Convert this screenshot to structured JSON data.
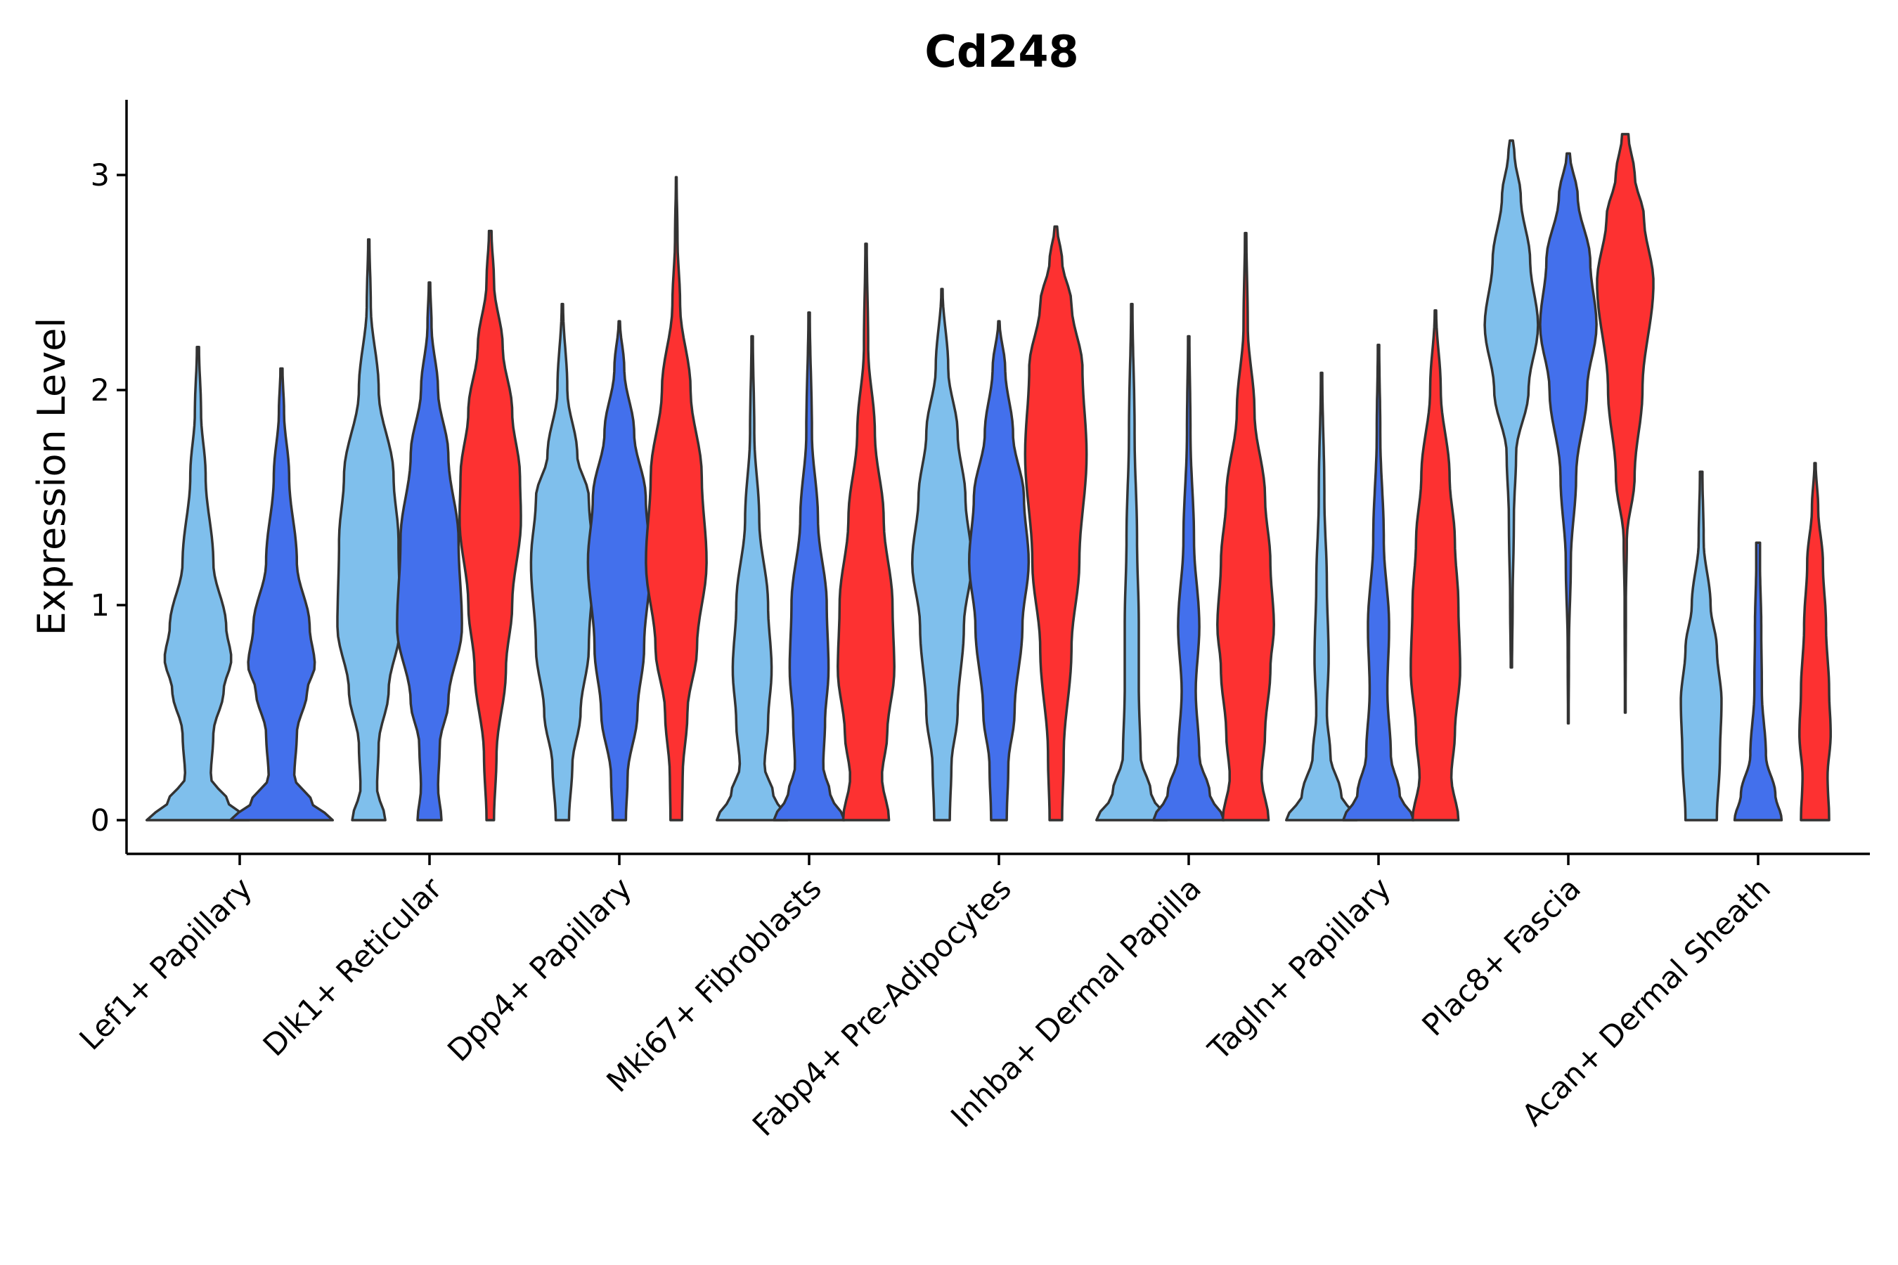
{
  "chart_data": {
    "type": "violin",
    "title": "Cd248",
    "xlabel": "",
    "ylabel": "Expression Level",
    "ylim": [
      -0.16,
      3.35
    ],
    "yticks": [
      0,
      1,
      2,
      3
    ],
    "colors": [
      "#7fbfec",
      "#4370ec",
      "#fd3131"
    ],
    "categories": [
      "Lef1+ Papillary",
      "Dlk1+ Reticular",
      "Dpp4+ Papillary",
      "Mki67+ Fibroblasts",
      "Fabp4+ Pre-Adipocytes",
      "Inhba+ Dermal Papilla",
      "Tagln+ Papillary",
      "Plac8+ Fascia",
      "Acan+ Dermal Sheath"
    ],
    "violins": [
      {
        "category": 0,
        "offset": -0.22,
        "color": 0,
        "min": 0.0,
        "max": 2.2,
        "width": 0.9,
        "profile": [
          [
            0.0,
            1.0
          ],
          [
            0.08,
            0.6
          ],
          [
            0.2,
            0.25
          ],
          [
            0.4,
            0.3
          ],
          [
            0.6,
            0.5
          ],
          [
            0.75,
            0.65
          ],
          [
            0.9,
            0.55
          ],
          [
            1.2,
            0.3
          ],
          [
            1.6,
            0.15
          ],
          [
            1.9,
            0.06
          ],
          [
            2.2,
            0.02
          ]
        ]
      },
      {
        "category": 0,
        "offset": 0.22,
        "color": 1,
        "min": 0.0,
        "max": 2.1,
        "width": 0.9,
        "profile": [
          [
            0.0,
            1.0
          ],
          [
            0.08,
            0.6
          ],
          [
            0.2,
            0.25
          ],
          [
            0.4,
            0.3
          ],
          [
            0.6,
            0.5
          ],
          [
            0.72,
            0.65
          ],
          [
            0.9,
            0.55
          ],
          [
            1.2,
            0.3
          ],
          [
            1.6,
            0.15
          ],
          [
            1.9,
            0.05
          ],
          [
            2.1,
            0.02
          ]
        ]
      },
      {
        "category": 1,
        "offset": -0.32,
        "color": 0,
        "min": 0.0,
        "max": 2.7,
        "width": 0.58,
        "profile": [
          [
            0.0,
            0.5
          ],
          [
            0.15,
            0.25
          ],
          [
            0.35,
            0.3
          ],
          [
            0.6,
            0.6
          ],
          [
            0.9,
            0.95
          ],
          [
            1.3,
            0.9
          ],
          [
            1.6,
            0.75
          ],
          [
            2.0,
            0.3
          ],
          [
            2.4,
            0.06
          ],
          [
            2.7,
            0.02
          ]
        ]
      },
      {
        "category": 1,
        "offset": 0.0,
        "color": 1,
        "min": 0.0,
        "max": 2.5,
        "width": 0.6,
        "profile": [
          [
            0.0,
            0.35
          ],
          [
            0.15,
            0.25
          ],
          [
            0.35,
            0.3
          ],
          [
            0.55,
            0.55
          ],
          [
            0.9,
            0.95
          ],
          [
            1.3,
            0.85
          ],
          [
            1.7,
            0.55
          ],
          [
            2.0,
            0.25
          ],
          [
            2.3,
            0.06
          ],
          [
            2.5,
            0.02
          ]
        ]
      },
      {
        "category": 1,
        "offset": 0.32,
        "color": 2,
        "min": 0.0,
        "max": 2.74,
        "width": 0.55,
        "profile": [
          [
            0.0,
            0.12
          ],
          [
            0.3,
            0.2
          ],
          [
            0.7,
            0.5
          ],
          [
            1.0,
            0.7
          ],
          [
            1.4,
            0.98
          ],
          [
            1.6,
            0.95
          ],
          [
            1.9,
            0.7
          ],
          [
            2.2,
            0.4
          ],
          [
            2.5,
            0.12
          ],
          [
            2.74,
            0.04
          ]
        ]
      },
      {
        "category": 2,
        "offset": -0.3,
        "color": 0,
        "min": 0.0,
        "max": 2.4,
        "width": 0.58,
        "profile": [
          [
            0.0,
            0.2
          ],
          [
            0.25,
            0.3
          ],
          [
            0.5,
            0.55
          ],
          [
            0.8,
            0.8
          ],
          [
            1.2,
            0.95
          ],
          [
            1.5,
            0.8
          ],
          [
            1.7,
            0.45
          ],
          [
            2.0,
            0.15
          ],
          [
            2.4,
            0.02
          ]
        ]
      },
      {
        "category": 2,
        "offset": 0.0,
        "color": 1,
        "min": 0.0,
        "max": 2.32,
        "width": 0.58,
        "profile": [
          [
            0.0,
            0.2
          ],
          [
            0.2,
            0.25
          ],
          [
            0.5,
            0.55
          ],
          [
            0.8,
            0.75
          ],
          [
            1.2,
            0.95
          ],
          [
            1.5,
            0.8
          ],
          [
            1.8,
            0.45
          ],
          [
            2.1,
            0.15
          ],
          [
            2.32,
            0.02
          ]
        ]
      },
      {
        "category": 2,
        "offset": 0.3,
        "color": 2,
        "min": 0.0,
        "max": 2.99,
        "width": 0.56,
        "profile": [
          [
            0.0,
            0.18
          ],
          [
            0.2,
            0.2
          ],
          [
            0.5,
            0.35
          ],
          [
            0.8,
            0.65
          ],
          [
            1.2,
            0.95
          ],
          [
            1.6,
            0.8
          ],
          [
            2.0,
            0.45
          ],
          [
            2.4,
            0.12
          ],
          [
            2.7,
            0.04
          ],
          [
            2.99,
            0.01
          ]
        ]
      },
      {
        "category": 3,
        "offset": -0.3,
        "color": 0,
        "min": 0.0,
        "max": 2.25,
        "width": 0.62,
        "profile": [
          [
            0.0,
            1.0
          ],
          [
            0.12,
            0.6
          ],
          [
            0.25,
            0.35
          ],
          [
            0.45,
            0.45
          ],
          [
            0.7,
            0.55
          ],
          [
            1.0,
            0.45
          ],
          [
            1.4,
            0.2
          ],
          [
            1.8,
            0.06
          ],
          [
            2.25,
            0.02
          ]
        ]
      },
      {
        "category": 3,
        "offset": 0.0,
        "color": 1,
        "min": 0.0,
        "max": 2.36,
        "width": 0.62,
        "profile": [
          [
            0.0,
            1.0
          ],
          [
            0.12,
            0.6
          ],
          [
            0.25,
            0.4
          ],
          [
            0.45,
            0.45
          ],
          [
            0.7,
            0.55
          ],
          [
            1.0,
            0.5
          ],
          [
            1.4,
            0.25
          ],
          [
            1.8,
            0.08
          ],
          [
            2.36,
            0.02
          ]
        ]
      },
      {
        "category": 3,
        "offset": 0.3,
        "color": 2,
        "min": 0.0,
        "max": 2.68,
        "width": 0.62,
        "profile": [
          [
            0.0,
            0.65
          ],
          [
            0.2,
            0.45
          ],
          [
            0.4,
            0.6
          ],
          [
            0.7,
            0.8
          ],
          [
            1.0,
            0.75
          ],
          [
            1.4,
            0.5
          ],
          [
            1.8,
            0.25
          ],
          [
            2.2,
            0.06
          ],
          [
            2.68,
            0.02
          ]
        ]
      },
      {
        "category": 4,
        "offset": -0.3,
        "color": 0,
        "min": 0.0,
        "max": 2.47,
        "width": 0.55,
        "profile": [
          [
            0.0,
            0.25
          ],
          [
            0.25,
            0.3
          ],
          [
            0.5,
            0.5
          ],
          [
            0.9,
            0.7
          ],
          [
            1.2,
            0.95
          ],
          [
            1.5,
            0.75
          ],
          [
            1.8,
            0.5
          ],
          [
            2.1,
            0.2
          ],
          [
            2.47,
            0.02
          ]
        ]
      },
      {
        "category": 4,
        "offset": 0.0,
        "color": 1,
        "min": 0.0,
        "max": 2.32,
        "width": 0.55,
        "profile": [
          [
            0.0,
            0.25
          ],
          [
            0.25,
            0.3
          ],
          [
            0.5,
            0.5
          ],
          [
            0.9,
            0.75
          ],
          [
            1.2,
            0.95
          ],
          [
            1.5,
            0.8
          ],
          [
            1.8,
            0.45
          ],
          [
            2.1,
            0.2
          ],
          [
            2.32,
            0.02
          ]
        ]
      },
      {
        "category": 4,
        "offset": 0.3,
        "color": 2,
        "min": 0.0,
        "max": 2.76,
        "width": 0.55,
        "profile": [
          [
            0.0,
            0.2
          ],
          [
            0.3,
            0.25
          ],
          [
            0.8,
            0.5
          ],
          [
            1.2,
            0.75
          ],
          [
            1.7,
            0.98
          ],
          [
            2.1,
            0.85
          ],
          [
            2.4,
            0.5
          ],
          [
            2.6,
            0.2
          ],
          [
            2.76,
            0.04
          ]
        ]
      },
      {
        "category": 5,
        "offset": -0.3,
        "color": 0,
        "min": 0.0,
        "max": 2.4,
        "width": 0.62,
        "profile": [
          [
            0.0,
            1.0
          ],
          [
            0.12,
            0.55
          ],
          [
            0.3,
            0.25
          ],
          [
            0.6,
            0.2
          ],
          [
            0.9,
            0.2
          ],
          [
            1.3,
            0.15
          ],
          [
            1.8,
            0.08
          ],
          [
            2.4,
            0.02
          ]
        ]
      },
      {
        "category": 5,
        "offset": 0.0,
        "color": 1,
        "min": 0.0,
        "max": 2.25,
        "width": 0.62,
        "profile": [
          [
            0.0,
            1.0
          ],
          [
            0.12,
            0.6
          ],
          [
            0.3,
            0.3
          ],
          [
            0.6,
            0.2
          ],
          [
            0.9,
            0.3
          ],
          [
            1.3,
            0.15
          ],
          [
            1.8,
            0.05
          ],
          [
            2.25,
            0.02
          ]
        ]
      },
      {
        "category": 5,
        "offset": 0.3,
        "color": 2,
        "min": 0.0,
        "max": 2.73,
        "width": 0.62,
        "profile": [
          [
            0.0,
            0.65
          ],
          [
            0.2,
            0.45
          ],
          [
            0.4,
            0.55
          ],
          [
            0.7,
            0.7
          ],
          [
            0.9,
            0.8
          ],
          [
            1.2,
            0.7
          ],
          [
            1.5,
            0.55
          ],
          [
            1.9,
            0.25
          ],
          [
            2.3,
            0.06
          ],
          [
            2.73,
            0.02
          ]
        ]
      },
      {
        "category": 6,
        "offset": -0.3,
        "color": 0,
        "min": 0.0,
        "max": 2.08,
        "width": 0.62,
        "profile": [
          [
            0.0,
            1.0
          ],
          [
            0.12,
            0.55
          ],
          [
            0.3,
            0.25
          ],
          [
            0.5,
            0.15
          ],
          [
            0.75,
            0.2
          ],
          [
            1.1,
            0.15
          ],
          [
            1.5,
            0.08
          ],
          [
            2.08,
            0.02
          ]
        ]
      },
      {
        "category": 6,
        "offset": 0.0,
        "color": 1,
        "min": 0.0,
        "max": 2.21,
        "width": 0.62,
        "profile": [
          [
            0.0,
            1.0
          ],
          [
            0.12,
            0.6
          ],
          [
            0.3,
            0.35
          ],
          [
            0.6,
            0.25
          ],
          [
            0.9,
            0.3
          ],
          [
            1.3,
            0.15
          ],
          [
            1.8,
            0.05
          ],
          [
            2.21,
            0.02
          ]
        ]
      },
      {
        "category": 6,
        "offset": 0.3,
        "color": 2,
        "min": 0.0,
        "max": 2.37,
        "width": 0.62,
        "profile": [
          [
            0.0,
            0.65
          ],
          [
            0.2,
            0.45
          ],
          [
            0.4,
            0.55
          ],
          [
            0.7,
            0.7
          ],
          [
            1.0,
            0.65
          ],
          [
            1.3,
            0.55
          ],
          [
            1.6,
            0.4
          ],
          [
            2.0,
            0.15
          ],
          [
            2.37,
            0.02
          ]
        ]
      },
      {
        "category": 7,
        "offset": -0.3,
        "color": 0,
        "min": 0.71,
        "max": 3.16,
        "width": 0.55,
        "profile": [
          [
            0.71,
            0.02
          ],
          [
            1.0,
            0.04
          ],
          [
            1.4,
            0.08
          ],
          [
            1.7,
            0.15
          ],
          [
            2.0,
            0.55
          ],
          [
            2.3,
            0.85
          ],
          [
            2.6,
            0.6
          ],
          [
            2.9,
            0.3
          ],
          [
            3.1,
            0.1
          ],
          [
            3.16,
            0.05
          ]
        ]
      },
      {
        "category": 7,
        "offset": 0.0,
        "color": 1,
        "min": 0.45,
        "max": 3.1,
        "width": 0.55,
        "profile": [
          [
            0.45,
            0.01
          ],
          [
            0.8,
            0.02
          ],
          [
            1.2,
            0.08
          ],
          [
            1.6,
            0.25
          ],
          [
            2.0,
            0.6
          ],
          [
            2.3,
            0.9
          ],
          [
            2.6,
            0.7
          ],
          [
            2.9,
            0.3
          ],
          [
            3.1,
            0.05
          ]
        ]
      },
      {
        "category": 7,
        "offset": 0.3,
        "color": 2,
        "min": 0.5,
        "max": 3.19,
        "width": 0.55,
        "profile": [
          [
            0.5,
            0.01
          ],
          [
            1.0,
            0.02
          ],
          [
            1.3,
            0.05
          ],
          [
            1.6,
            0.3
          ],
          [
            2.0,
            0.55
          ],
          [
            2.5,
            0.9
          ],
          [
            2.8,
            0.6
          ],
          [
            3.0,
            0.3
          ],
          [
            3.19,
            0.1
          ]
        ]
      },
      {
        "category": 8,
        "offset": -0.3,
        "color": 0,
        "min": 0.0,
        "max": 1.62,
        "width": 0.55,
        "profile": [
          [
            0.0,
            0.5
          ],
          [
            0.3,
            0.6
          ],
          [
            0.55,
            0.65
          ],
          [
            0.8,
            0.5
          ],
          [
            1.0,
            0.3
          ],
          [
            1.3,
            0.08
          ],
          [
            1.62,
            0.04
          ]
        ]
      },
      {
        "category": 8,
        "offset": 0.0,
        "color": 1,
        "min": 0.0,
        "max": 1.29,
        "width": 0.55,
        "profile": [
          [
            0.0,
            0.75
          ],
          [
            0.12,
            0.55
          ],
          [
            0.3,
            0.25
          ],
          [
            0.6,
            0.12
          ],
          [
            0.9,
            0.1
          ],
          [
            1.2,
            0.06
          ],
          [
            1.29,
            0.06
          ]
        ]
      },
      {
        "category": 8,
        "offset": 0.3,
        "color": 2,
        "min": 0.0,
        "max": 1.66,
        "width": 0.55,
        "profile": [
          [
            0.0,
            0.45
          ],
          [
            0.2,
            0.4
          ],
          [
            0.4,
            0.5
          ],
          [
            0.6,
            0.45
          ],
          [
            0.9,
            0.35
          ],
          [
            1.2,
            0.25
          ],
          [
            1.45,
            0.1
          ],
          [
            1.66,
            0.02
          ]
        ]
      }
    ]
  }
}
